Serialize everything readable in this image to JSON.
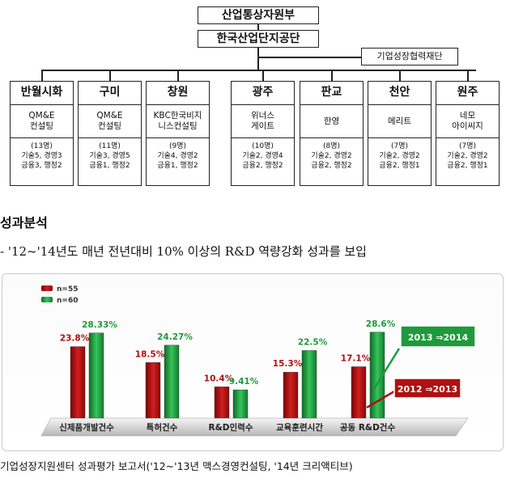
{
  "org": {
    "top": "산업통상자원부",
    "second": "한국산업단지공단",
    "side": "기업성장협력재단",
    "branches": [
      {
        "name": "반월시화",
        "consult": "QM&E\n컨설팅",
        "staff": "(13명)\n기술5, 경영3\n금융3, 행정2"
      },
      {
        "name": "구미",
        "consult": "QM&E\n컨설팅",
        "staff": "(11명)\n기술3, 경영5\n금융1, 행정2"
      },
      {
        "name": "창원",
        "consult": "KBC한국비지\n니스컨설팅",
        "staff": "(9명)\n기술4, 경영2\n금융1, 행정2"
      },
      {
        "name": "광주",
        "consult": "위너스\n게이트",
        "staff": "(10명)\n기술2, 경영4\n금융2, 행정2"
      },
      {
        "name": "판교",
        "consult": "한영",
        "staff": "(8명)\n기술2, 경영2\n금융2, 행정2"
      },
      {
        "name": "천안",
        "consult": "메리트",
        "staff": "(7명)\n기술2, 경영2\n금융2, 행정1"
      },
      {
        "name": "원주",
        "consult": "네모\n아이씨지",
        "staff": "(7명)\n기술2, 경영2\n금융2, 행정1"
      }
    ]
  },
  "section_title": "성과분석",
  "subtitle": "- '12~'14년도 매년 전년대비 10% 이상의 R&D 역량강화 성과를 보입",
  "chart_data": {
    "type": "bar",
    "categories": [
      "신제품개발건수",
      "특허건수",
      "R&D인력수",
      "교육훈련시간",
      "공동 R&D건수"
    ],
    "series": [
      {
        "name": "n=55",
        "values": [
          23.8,
          18.5,
          10.4,
          15.3,
          17.1
        ],
        "labels": [
          "23.8%",
          "18.5%",
          "10.4%",
          "15.3%",
          "17.1%"
        ],
        "color": "#b01010"
      },
      {
        "name": "n=60",
        "values": [
          28.33,
          24.27,
          9.41,
          22.5,
          28.6
        ],
        "labels": [
          "28.33%",
          "24.27%",
          "9.41%",
          "22.5%",
          "28.6%"
        ],
        "color": "#1f9a3c"
      }
    ],
    "ylim": [
      0,
      35
    ],
    "annotations": [
      "2013 ⇒2014",
      "2012 ⇒2013"
    ]
  },
  "footnote": "기업성장지원센터 성과평가 보고서('12~'13년 맥스경영컨설팅, '14년 크리액티브)"
}
